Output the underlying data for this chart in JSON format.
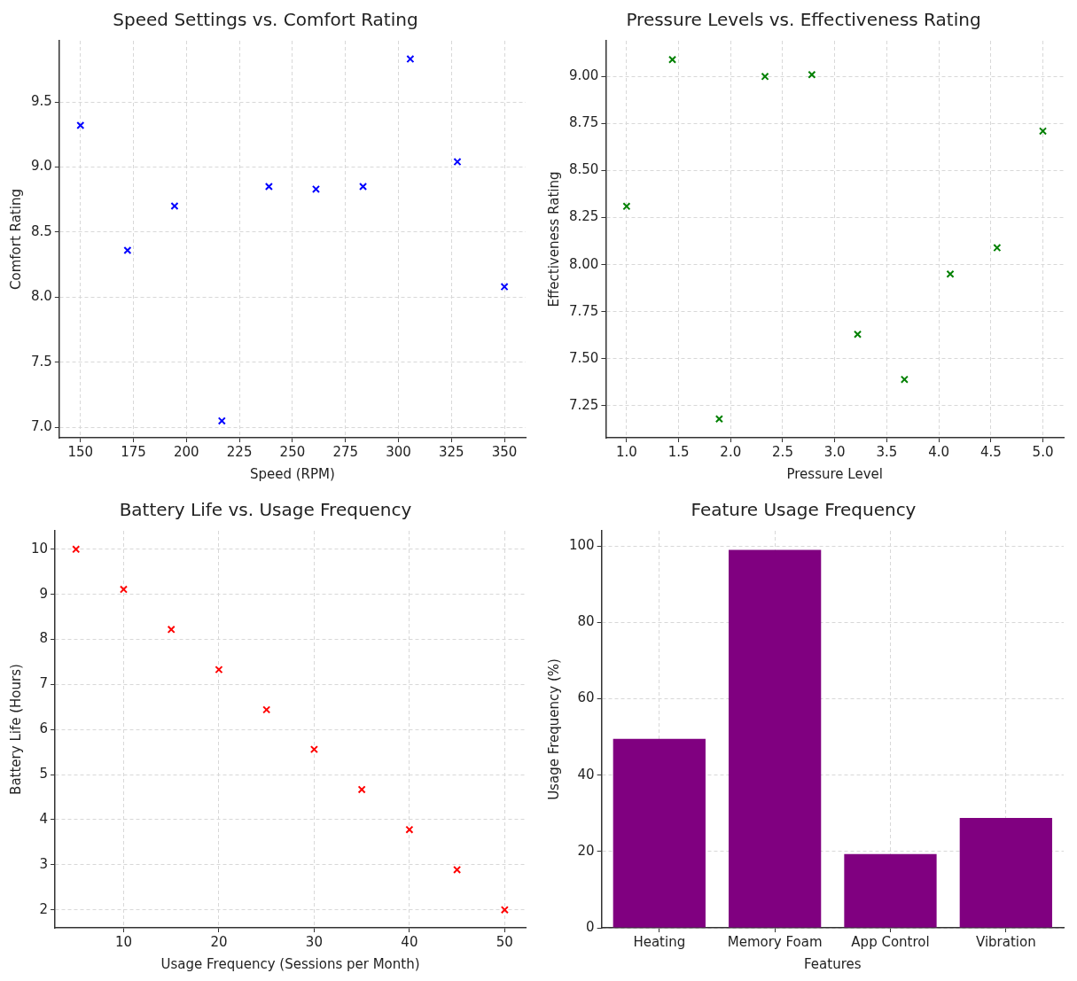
{
  "chart_data": [
    {
      "type": "scatter",
      "title": "Speed Settings vs. Comfort Rating",
      "xlabel": "Speed (RPM)",
      "ylabel": "Comfort Rating",
      "x": [
        150,
        172.2,
        194.4,
        216.7,
        238.9,
        261.1,
        283.3,
        305.6,
        327.8,
        350
      ],
      "values": [
        9.32,
        8.36,
        8.7,
        7.05,
        8.85,
        8.83,
        8.85,
        9.83,
        9.04,
        8.08
      ],
      "color": "#0000ff",
      "marker": "cross",
      "grid": true,
      "xlim": [
        140,
        360
      ],
      "ylim": [
        6.92,
        9.97
      ],
      "xticks": [
        150,
        175,
        200,
        225,
        250,
        275,
        300,
        325,
        350
      ],
      "yticks": [
        {
          "value": 7,
          "label": "7.0"
        },
        7.5,
        {
          "value": 8,
          "label": "8.0"
        },
        8.5,
        {
          "value": 9,
          "label": "9.0"
        },
        9.5
      ]
    },
    {
      "type": "scatter",
      "title": "Pressure Levels vs. Effectiveness Rating",
      "xlabel": "Pressure Level",
      "ylabel": "Effectiveness Rating",
      "x": [
        1,
        1.44,
        1.89,
        2.33,
        2.78,
        3.22,
        3.67,
        4.11,
        4.56,
        5
      ],
      "values": [
        8.31,
        9.09,
        7.18,
        9.0,
        9.01,
        7.63,
        7.39,
        7.95,
        8.09,
        8.71
      ],
      "color": "#008000",
      "marker": "cross",
      "grid": true,
      "xlim": [
        0.8,
        5.2
      ],
      "ylim": [
        7.08,
        9.19
      ],
      "xticks": [
        {
          "value": 1,
          "label": "1.0"
        },
        1.5,
        {
          "value": 2,
          "label": "2.0"
        },
        2.5,
        {
          "value": 3,
          "label": "3.0"
        },
        3.5,
        {
          "value": 4,
          "label": "4.0"
        },
        4.5,
        {
          "value": 5,
          "label": "5.0"
        }
      ],
      "yticks": [
        7.25,
        {
          "value": 7.5,
          "label": "7.50"
        },
        7.75,
        {
          "value": 8,
          "label": "8.00"
        },
        8.25,
        {
          "value": 8.5,
          "label": "8.50"
        },
        8.75,
        {
          "value": 9,
          "label": "9.00"
        }
      ]
    },
    {
      "type": "scatter",
      "title": "Battery Life vs. Usage Frequency",
      "xlabel": "Usage Frequency (Sessions per Month)",
      "ylabel": "Battery Life (Hours)",
      "x": [
        5,
        10,
        15,
        20,
        25,
        30,
        35,
        40,
        45,
        50
      ],
      "values": [
        10,
        9.11,
        8.22,
        7.33,
        6.44,
        5.56,
        4.67,
        3.78,
        2.89,
        2
      ],
      "color": "#ff0000",
      "marker": "cross",
      "grid": true,
      "xlim": [
        2.8,
        52.2
      ],
      "ylim": [
        1.6,
        10.41
      ],
      "xticks": [
        10,
        20,
        30,
        40,
        50
      ],
      "yticks": [
        2,
        3,
        4,
        5,
        6,
        7,
        8,
        9,
        10
      ]
    },
    {
      "type": "bar",
      "title": "Feature Usage Frequency",
      "xlabel": "Features",
      "ylabel": "Usage Frequency (%)",
      "categories": [
        "Heating",
        "Memory Foam",
        "App Control",
        "Vibration"
      ],
      "values": [
        49.5,
        99,
        19.3,
        28.8
      ],
      "color": "#800080",
      "grid": true,
      "ylim": [
        0,
        104
      ],
      "yticks": [
        0,
        20,
        40,
        60,
        80,
        100
      ]
    }
  ]
}
